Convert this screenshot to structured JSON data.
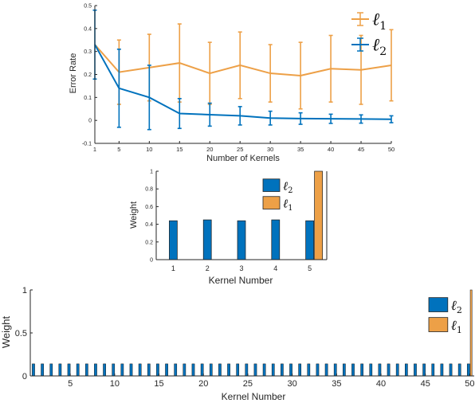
{
  "colors": {
    "l2": "#0072BD",
    "l1": "#EDA047",
    "axis": "#262626"
  },
  "legend_labels": {
    "l1": "ℓ1",
    "l2": "ℓ2",
    "l1_sub": "1",
    "l2_sub": "2",
    "l1_base": "ℓ",
    "l2_base": "ℓ"
  },
  "chart_data": [
    {
      "type": "line",
      "xlabel": "Number of Kernels",
      "ylabel": "Error Rate",
      "xlim": [
        1,
        50
      ],
      "ylim": [
        -0.1,
        0.5
      ],
      "xticks": [
        1,
        5,
        10,
        15,
        20,
        25,
        30,
        35,
        40,
        45,
        50
      ],
      "yticks": [
        -0.1,
        0,
        0.1,
        0.2,
        0.3,
        0.4,
        0.5
      ],
      "legend": "top-right",
      "errorbars": true,
      "x": [
        1,
        5,
        10,
        15,
        20,
        25,
        30,
        35,
        40,
        45,
        50
      ],
      "series": [
        {
          "name": "ℓ1",
          "color_key": "l1",
          "values": [
            0.33,
            0.21,
            0.23,
            0.25,
            0.205,
            0.24,
            0.205,
            0.195,
            0.225,
            0.22,
            0.24
          ],
          "err": [
            0.0,
            0.14,
            0.145,
            0.17,
            0.135,
            0.145,
            0.125,
            0.145,
            0.145,
            0.15,
            0.155
          ]
        },
        {
          "name": "ℓ2",
          "color_key": "l2",
          "values": [
            0.33,
            0.14,
            0.1,
            0.03,
            0.025,
            0.02,
            0.01,
            0.008,
            0.007,
            0.006,
            0.005
          ],
          "err": [
            0.15,
            0.17,
            0.14,
            0.065,
            0.05,
            0.04,
            0.03,
            0.025,
            0.02,
            0.018,
            0.015
          ]
        }
      ]
    },
    {
      "type": "bar",
      "xlabel": "Kernel Number",
      "ylabel": "Weight",
      "xlim": [
        0.5,
        5.5
      ],
      "ylim": [
        0,
        1
      ],
      "categories": [
        "1",
        "2",
        "3",
        "4",
        "5"
      ],
      "yticks": [
        0,
        0.2,
        0.4,
        0.6,
        0.8,
        1
      ],
      "legend": "top-right",
      "series": [
        {
          "name": "ℓ2",
          "color_key": "l2",
          "values": [
            0.44,
            0.45,
            0.44,
            0.45,
            0.44
          ]
        },
        {
          "name": "ℓ1",
          "color_key": "l1",
          "values": [
            0,
            0,
            0,
            0,
            1.0
          ]
        }
      ]
    },
    {
      "type": "bar",
      "xlabel": "Kernel Number",
      "ylabel": "Weight",
      "xlim": [
        0.5,
        50.5
      ],
      "ylim": [
        0,
        1
      ],
      "xticks": [
        5,
        10,
        15,
        20,
        25,
        30,
        35,
        40,
        45,
        50
      ],
      "yticks": [
        0,
        0.5,
        1
      ],
      "legend": "top-right",
      "n_kernels": 50,
      "series": [
        {
          "name": "ℓ2",
          "color_key": "l2",
          "values": [
            0.14,
            0.14,
            0.14,
            0.14,
            0.14,
            0.14,
            0.14,
            0.14,
            0.14,
            0.14,
            0.14,
            0.14,
            0.14,
            0.14,
            0.14,
            0.14,
            0.14,
            0.14,
            0.14,
            0.14,
            0.14,
            0.14,
            0.14,
            0.14,
            0.14,
            0.14,
            0.14,
            0.14,
            0.14,
            0.14,
            0.14,
            0.14,
            0.14,
            0.14,
            0.14,
            0.14,
            0.14,
            0.14,
            0.14,
            0.14,
            0.14,
            0.14,
            0.14,
            0.14,
            0.14,
            0.14,
            0.14,
            0.14,
            0.14,
            0.14
          ]
        },
        {
          "name": "ℓ1",
          "color_key": "l1",
          "values": [
            0,
            0,
            0,
            0,
            0,
            0,
            0,
            0,
            0,
            0,
            0,
            0,
            0,
            0,
            0,
            0,
            0,
            0,
            0,
            0,
            0,
            0,
            0,
            0,
            0,
            0,
            0,
            0,
            0,
            0,
            0,
            0,
            0,
            0,
            0,
            0,
            0,
            0,
            0,
            0,
            0,
            0,
            0,
            0,
            0,
            0,
            0,
            0,
            0,
            1.0
          ]
        }
      ]
    }
  ]
}
